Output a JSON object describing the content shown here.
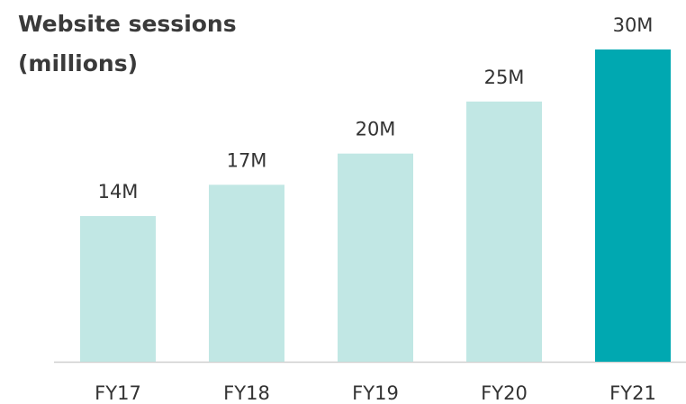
{
  "chart_data": {
    "type": "bar",
    "title": "Website sessions",
    "subtitle": "(millions)",
    "categories": [
      "FY17",
      "FY18",
      "FY19",
      "FY20",
      "FY21"
    ],
    "values": [
      14,
      17,
      20,
      25,
      30
    ],
    "value_labels": [
      "14M",
      "17M",
      "20M",
      "25M",
      "30M"
    ],
    "colors": [
      "#c1e7e4",
      "#c1e7e4",
      "#c1e7e4",
      "#c1e7e4",
      "#00a8b1"
    ]
  }
}
